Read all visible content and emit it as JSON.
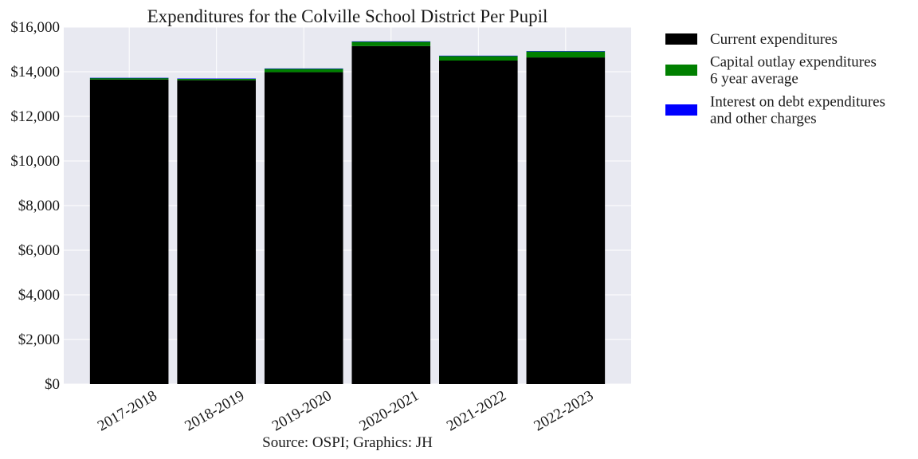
{
  "chart_data": {
    "type": "bar",
    "stacked": true,
    "title": "Expenditures for the Colville School District Per Pupil",
    "xlabel": "Source: OSPI; Graphics: JH",
    "ylabel": "",
    "categories": [
      "2017-2018",
      "2018-2019",
      "2019-2020",
      "2020-2021",
      "2021-2022",
      "2022-2023"
    ],
    "series": [
      {
        "name": "Current expenditures",
        "color": "#000000",
        "values": [
          13650,
          13620,
          13980,
          15150,
          14500,
          14640
        ]
      },
      {
        "name": "Capital outlay expenditures\n6 year average",
        "color": "#008000",
        "values": [
          70,
          70,
          160,
          200,
          210,
          270
        ]
      },
      {
        "name": "Interest on debt expenditures\nand other charges",
        "color": "#0000ff",
        "values": [
          5,
          5,
          5,
          10,
          10,
          15
        ]
      }
    ],
    "ylim": [
      0,
      16000
    ],
    "yticks": [
      0,
      2000,
      4000,
      6000,
      8000,
      10000,
      12000,
      14000,
      16000
    ],
    "ytick_labels": [
      "$0",
      "$2,000",
      "$4,000",
      "$6,000",
      "$8,000",
      "$10,000",
      "$12,000",
      "$14,000",
      "$16,000"
    ],
    "grid": true,
    "legend_position": "outside-right"
  }
}
